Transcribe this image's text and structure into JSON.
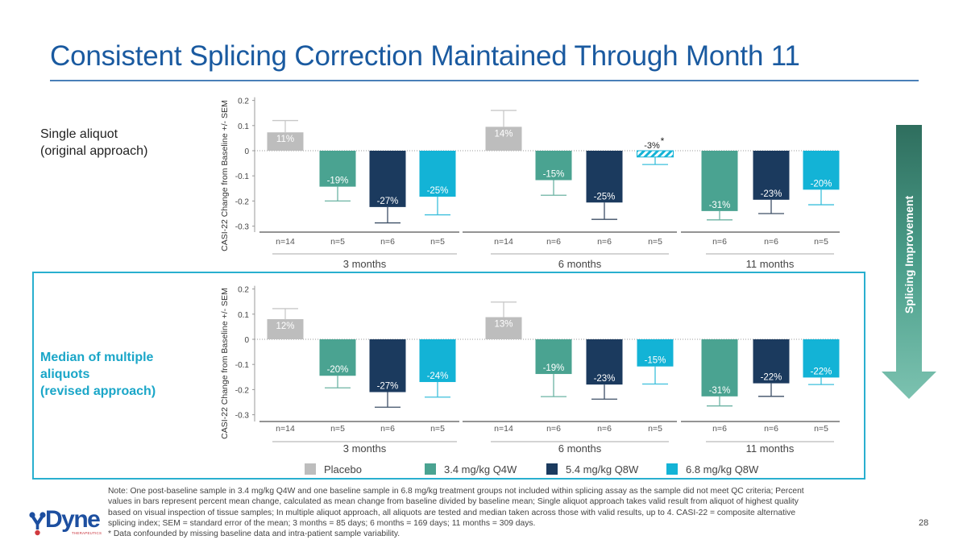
{
  "slide": {
    "title": "Consistent Splicing Correction Maintained Through Month 11",
    "page_number": "28",
    "approach_top_line1": "Single aliquot",
    "approach_top_line2": "(original approach)",
    "approach_bottom_line1": "Median of multiple",
    "approach_bottom_line2": "aliquots",
    "approach_bottom_line3": "(revised approach)",
    "arrow_label": "Splicing Improvement",
    "logo_text": "Dyne",
    "logo_subtext": "THERAPEUTICS",
    "note_lines": [
      "Note: One post-baseline sample in 3.4 mg/kg Q4W and one baseline sample in 6.8 mg/kg treatment groups not included within splicing assay as the sample did not meet QC criteria; Percent",
      "values in bars represent percent mean change, calculated as mean change from baseline divided by baseline mean; Single aliquot approach takes valid result from aliquot of highest quality",
      "based on visual inspection of tissue samples; In multiple aliquot approach, all aliquots are tested and median taken across those with valid results, up to 4. CASI-22 = composite alternative",
      "splicing index; SEM = standard error of the mean; 3 months = 85 days; 6 months = 169 days; 11 months = 309 days.",
      "* Data confounded by missing baseline data and intra-patient sample variability."
    ],
    "colors": {
      "title": "#1a5aa0",
      "accent_box": "#29afcf",
      "placebo": "#bdbdbd",
      "dose_3_4": "#4aa391",
      "dose_5_4": "#1b3a5e",
      "dose_6_8": "#13b3d6"
    }
  },
  "chart_data": [
    {
      "type": "bar",
      "title": "Single aliquot (original approach)",
      "ylabel": "CASI-22 Change from Baseline +/- SEM",
      "ylim": [
        -0.3,
        0.2
      ],
      "yticks": [
        "0.2",
        "0.1",
        "0",
        "-0.1",
        "-0.2",
        "-0.3"
      ],
      "ytick_values": [
        0.2,
        0.1,
        0,
        -0.1,
        -0.2,
        -0.3
      ],
      "groups": [
        {
          "label": "3 months",
          "bars": [
            {
              "series": "placebo",
              "value": 0.073,
              "err": 0.12,
              "label": "11%",
              "n": "n=14"
            },
            {
              "series": "dose_3_4",
              "value": -0.143,
              "err": -0.2,
              "label": "-19%",
              "n": "n=5"
            },
            {
              "series": "dose_5_4",
              "value": -0.224,
              "err": -0.287,
              "label": "-27%",
              "n": "n=6"
            },
            {
              "series": "dose_6_8",
              "value": -0.183,
              "err": -0.255,
              "label": "-25%",
              "n": "n=5"
            }
          ]
        },
        {
          "label": "6 months",
          "bars": [
            {
              "series": "placebo",
              "value": 0.095,
              "err": 0.16,
              "label": "14%",
              "n": "n=14"
            },
            {
              "series": "dose_3_4",
              "value": -0.117,
              "err": -0.177,
              "label": "-15%",
              "n": "n=6"
            },
            {
              "series": "dose_5_4",
              "value": -0.206,
              "err": -0.273,
              "label": "-25%",
              "n": "n=6"
            },
            {
              "series": "dose_6_8",
              "value": -0.025,
              "err": -0.055,
              "label": "-3%",
              "n": "n=5",
              "hatched": true,
              "asterisk": "*"
            }
          ]
        },
        {
          "label": "11 months",
          "bars": [
            {
              "series": "dose_3_4",
              "value": -0.24,
              "err": -0.275,
              "label": "-31%",
              "n": "n=6"
            },
            {
              "series": "dose_5_4",
              "value": -0.195,
              "err": -0.25,
              "label": "-23%",
              "n": "n=6"
            },
            {
              "series": "dose_6_8",
              "value": -0.155,
              "err": -0.215,
              "label": "-20%",
              "n": "n=5"
            }
          ]
        }
      ]
    },
    {
      "type": "bar",
      "title": "Median of multiple aliquots (revised approach)",
      "ylabel": "CASI-22 Change from Baseline +/- SEM",
      "ylim": [
        -0.3,
        0.2
      ],
      "yticks": [
        "0.2",
        "0.1",
        "0",
        "-0.1",
        "-0.2",
        "-0.3"
      ],
      "ytick_values": [
        0.2,
        0.1,
        0,
        -0.1,
        -0.2,
        -0.3
      ],
      "groups": [
        {
          "label": "3 months",
          "bars": [
            {
              "series": "placebo",
              "value": 0.08,
              "err": 0.122,
              "label": "12%",
              "n": "n=14"
            },
            {
              "series": "dose_3_4",
              "value": -0.145,
              "err": -0.193,
              "label": "-20%",
              "n": "n=5"
            },
            {
              "series": "dose_5_4",
              "value": -0.21,
              "err": -0.27,
              "label": "-27%",
              "n": "n=6"
            },
            {
              "series": "dose_6_8",
              "value": -0.17,
              "err": -0.23,
              "label": "-24%",
              "n": "n=5"
            }
          ]
        },
        {
          "label": "6 months",
          "bars": [
            {
              "series": "placebo",
              "value": 0.088,
              "err": 0.148,
              "label": "13%",
              "n": "n=14"
            },
            {
              "series": "dose_3_4",
              "value": -0.138,
              "err": -0.228,
              "label": "-19%",
              "n": "n=6"
            },
            {
              "series": "dose_5_4",
              "value": -0.18,
              "err": -0.238,
              "label": "-23%",
              "n": "n=6"
            },
            {
              "series": "dose_6_8",
              "value": -0.108,
              "err": -0.178,
              "label": "-15%",
              "n": "n=5"
            }
          ]
        },
        {
          "label": "11 months",
          "bars": [
            {
              "series": "dose_3_4",
              "value": -0.227,
              "err": -0.265,
              "label": "-31%",
              "n": "n=6"
            },
            {
              "series": "dose_5_4",
              "value": -0.175,
              "err": -0.227,
              "label": "-22%",
              "n": "n=6"
            },
            {
              "series": "dose_6_8",
              "value": -0.152,
              "err": -0.18,
              "label": "-22%",
              "n": "n=5"
            }
          ]
        }
      ]
    }
  ],
  "legend": [
    {
      "series": "placebo",
      "label": "Placebo",
      "color": "#bdbdbd"
    },
    {
      "series": "dose_3_4",
      "label": "3.4 mg/kg Q4W",
      "color": "#4aa391"
    },
    {
      "series": "dose_5_4",
      "label": "5.4 mg/kg Q8W",
      "color": "#1b3a5e"
    },
    {
      "series": "dose_6_8",
      "label": "6.8 mg/kg Q8W",
      "color": "#13b3d6"
    }
  ]
}
